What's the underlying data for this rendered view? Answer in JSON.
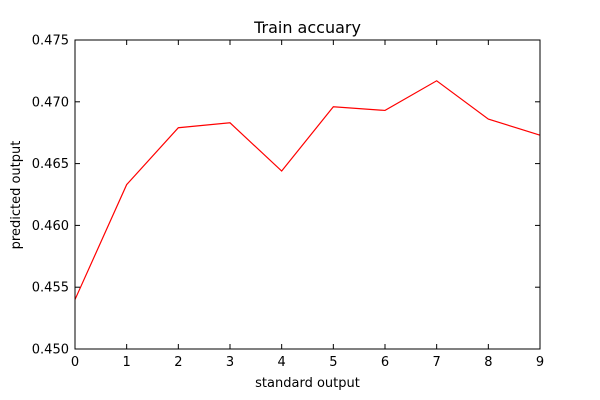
{
  "chart_data": {
    "type": "line",
    "title": "Train accuary",
    "xlabel": "standard output",
    "ylabel": "predicted output",
    "xlim": [
      0,
      9
    ],
    "ylim": [
      0.45,
      0.475
    ],
    "xticks": [
      "0",
      "1",
      "2",
      "3",
      "4",
      "5",
      "6",
      "7",
      "8",
      "9"
    ],
    "yticks": [
      "0.450",
      "0.455",
      "0.460",
      "0.465",
      "0.470",
      "0.475"
    ],
    "grid": false,
    "series": [
      {
        "color": "#ff0000",
        "x": [
          0,
          1,
          2,
          3,
          4,
          5,
          6,
          7,
          8,
          9
        ],
        "y": [
          0.454,
          0.4633,
          0.4679,
          0.4683,
          0.4644,
          0.4696,
          0.4693,
          0.4717,
          0.4686,
          0.4673
        ]
      }
    ]
  }
}
